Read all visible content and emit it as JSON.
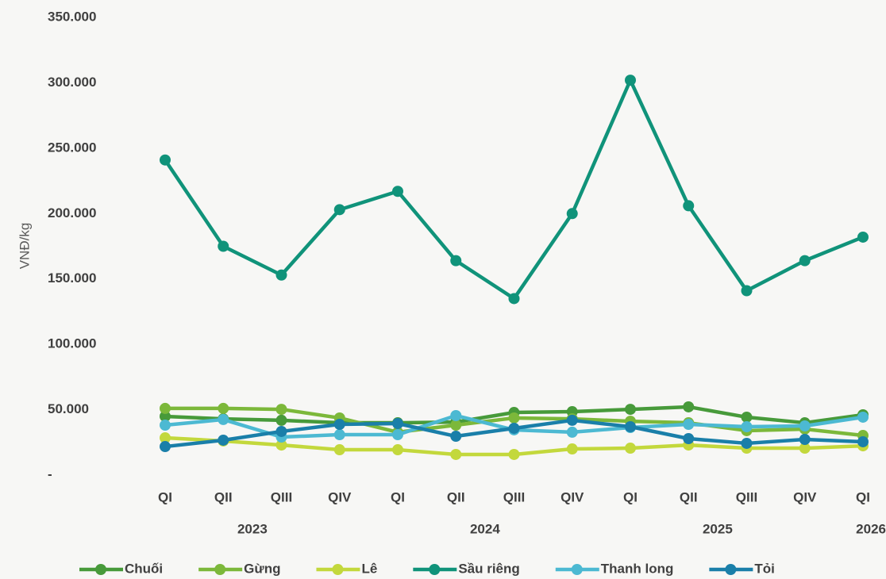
{
  "chart_data": {
    "type": "line",
    "y_label": "VNĐ/kg",
    "categories": [
      "QI",
      "QII",
      "QIII",
      "QIV",
      "QI",
      "QII",
      "QIII",
      "QIV",
      "QI",
      "QII",
      "QIII",
      "QIV",
      "QI"
    ],
    "year_labels": [
      "2023",
      "2024",
      "2025",
      "2026"
    ],
    "ylim": [
      0,
      350000
    ],
    "yticks": [
      {
        "value": 0,
        "label": "-"
      },
      {
        "value": 50000,
        "label": "50.000"
      },
      {
        "value": 100000,
        "label": "100.000"
      },
      {
        "value": 150000,
        "label": "150.000"
      },
      {
        "value": 200000,
        "label": "200.000"
      },
      {
        "value": 250000,
        "label": "250.000"
      },
      {
        "value": 300000,
        "label": "300.000"
      },
      {
        "value": 350000,
        "label": "350.000"
      }
    ],
    "grid": false,
    "legend": "bottom",
    "series": [
      {
        "name": "Chuối",
        "color": "#479a3a",
        "values": [
          44900,
          43000,
          41900,
          40000,
          40000,
          40600,
          47900,
          48500,
          50300,
          52200,
          44300,
          40000,
          46100
        ]
      },
      {
        "name": "Gừng",
        "color": "#7cb83a",
        "values": [
          51000,
          51000,
          50300,
          43700,
          32800,
          38200,
          43700,
          43000,
          41200,
          40000,
          34000,
          35200,
          30300
        ]
      },
      {
        "name": "Lê",
        "color": "#c3d83c",
        "values": [
          28500,
          26100,
          23000,
          19400,
          19400,
          15800,
          15800,
          20000,
          20600,
          23000,
          20600,
          20600,
          22400
        ]
      },
      {
        "name": "Sầu riêng",
        "color": "#10937a",
        "values": [
          241000,
          175000,
          153000,
          203000,
          217000,
          164000,
          135000,
          200000,
          302000,
          206000,
          141000,
          164000,
          182000
        ]
      },
      {
        "name": "Thanh long",
        "color": "#4cb9d2",
        "values": [
          38200,
          42500,
          29100,
          30900,
          30900,
          45500,
          34600,
          32800,
          36400,
          38800,
          37000,
          37600,
          44300
        ]
      },
      {
        "name": "Tỏi",
        "color": "#1a7fa9",
        "values": [
          21800,
          26700,
          33400,
          38800,
          39400,
          29700,
          35800,
          41900,
          37000,
          27900,
          24300,
          27300,
          25500
        ]
      }
    ]
  }
}
